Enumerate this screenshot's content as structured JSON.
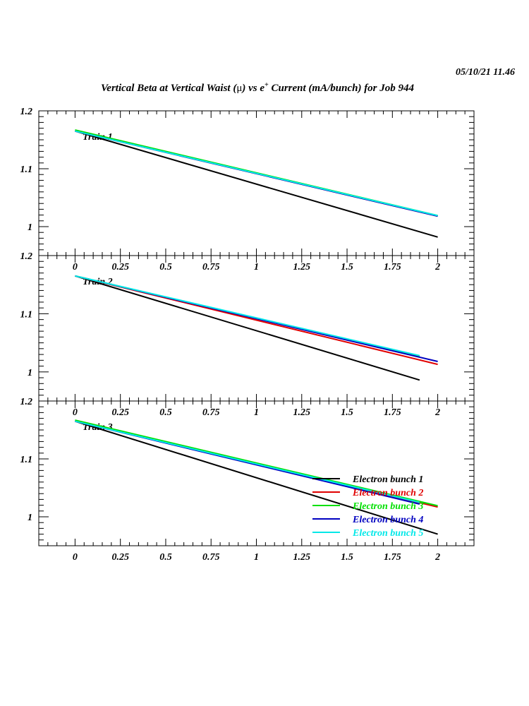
{
  "timestamp": "05/10/21  11.46",
  "title": {
    "main": "Vertical Beta at Vertical Waist (",
    "mu": "μ",
    "mid": ") vs e",
    "sup": "+",
    "tail": " Current (mA/bunch) for Job 944"
  },
  "colors": {
    "Electron bunch 1": "#000000",
    "Electron bunch 2": "#e00000",
    "Electron bunch 3": "#00e000",
    "Electron bunch 4": "#0000c0",
    "Electron bunch 5": "#00e8e8"
  },
  "chart_data": [
    {
      "type": "line",
      "label": "Train 1",
      "xlim": [
        -0.2,
        2.2
      ],
      "ylim": [
        0.95,
        1.2
      ],
      "xticks": [
        "0",
        "0.25",
        "0.5",
        "0.75",
        "1",
        "1.25",
        "1.5",
        "1.75",
        "2"
      ],
      "yticks": [
        "1.2",
        "1.1",
        "1"
      ],
      "series": [
        {
          "name": "Electron bunch 1",
          "x": [
            0,
            2
          ],
          "y": [
            1.165,
            0.982
          ]
        },
        {
          "name": "Electron bunch 2",
          "x": [
            0,
            2
          ],
          "y": [
            1.165,
            1.018
          ]
        },
        {
          "name": "Electron bunch 3",
          "x": [
            0,
            2
          ],
          "y": [
            1.167,
            1.019
          ]
        },
        {
          "name": "Electron bunch 4",
          "x": [
            0,
            2
          ],
          "y": [
            1.165,
            1.018
          ]
        },
        {
          "name": "Electron bunch 5",
          "x": [
            0,
            2
          ],
          "y": [
            1.165,
            1.019
          ]
        }
      ]
    },
    {
      "type": "line",
      "label": "Train 2",
      "xlim": [
        -0.2,
        2.2
      ],
      "ylim": [
        0.95,
        1.2
      ],
      "xticks": [
        "0",
        "0.25",
        "0.5",
        "0.75",
        "1",
        "1.25",
        "1.5",
        "1.75",
        "2"
      ],
      "yticks": [
        "1.2",
        "1.1",
        "1"
      ],
      "series": [
        {
          "name": "Electron bunch 1",
          "x": [
            0,
            1.9
          ],
          "y": [
            1.165,
            0.986
          ]
        },
        {
          "name": "Electron bunch 2",
          "x": [
            0,
            2
          ],
          "y": [
            1.165,
            1.013
          ]
        },
        {
          "name": "Electron bunch 3",
          "x": [
            0,
            1.9
          ],
          "y": [
            1.165,
            1.027
          ]
        },
        {
          "name": "Electron bunch 4",
          "x": [
            0,
            2
          ],
          "y": [
            1.165,
            1.018
          ]
        },
        {
          "name": "Electron bunch 5",
          "x": [
            0,
            1.9
          ],
          "y": [
            1.165,
            1.028
          ]
        }
      ]
    },
    {
      "type": "line",
      "label": "Train 3",
      "xlim": [
        -0.2,
        2.2
      ],
      "ylim": [
        0.95,
        1.2
      ],
      "xticks": [
        "0",
        "0.25",
        "0.5",
        "0.75",
        "1",
        "1.25",
        "1.5",
        "1.75",
        "2"
      ],
      "yticks": [
        "1.2",
        "1.1",
        "1"
      ],
      "legend": "bottom-right",
      "series": [
        {
          "name": "Electron bunch 1",
          "x": [
            0,
            2
          ],
          "y": [
            1.165,
            0.97
          ]
        },
        {
          "name": "Electron bunch 2",
          "x": [
            0,
            2
          ],
          "y": [
            1.165,
            1.017
          ]
        },
        {
          "name": "Electron bunch 3",
          "x": [
            0,
            2
          ],
          "y": [
            1.167,
            1.019
          ]
        },
        {
          "name": "Electron bunch 4",
          "x": [
            0,
            1.9
          ],
          "y": [
            1.165,
            1.022
          ]
        },
        {
          "name": "Electron bunch 5",
          "x": [
            0,
            1.9
          ],
          "y": [
            1.165,
            1.025
          ]
        }
      ]
    }
  ]
}
